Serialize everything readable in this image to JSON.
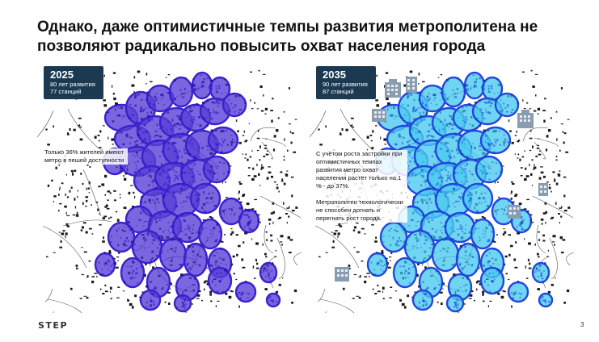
{
  "slide": {
    "title": "Однако, даже оптимистичные темпы развития метрополитена не позволяют радикально повысить охват населения города",
    "page_number": "3",
    "logo": "STEP"
  },
  "left_panel": {
    "year": "2025",
    "line1": "80 лет развития",
    "line2": "77 станций",
    "note": "Только 36% жителей имеют метро в пешей доступности",
    "accent": "#4b2fd3"
  },
  "right_panel": {
    "year": "2035",
    "line1": "90 лет развития",
    "line2": "87 станций",
    "note1": "С учётом роста застройки при оптимистичных темпах развития метро охват населения растёт только на 1 % - до 37%.",
    "note2": "Метрополитен технологически не способен догнать и перегнать рост города.",
    "accent": "#3cc6ef"
  },
  "icons": {
    "building": "building-icon"
  }
}
